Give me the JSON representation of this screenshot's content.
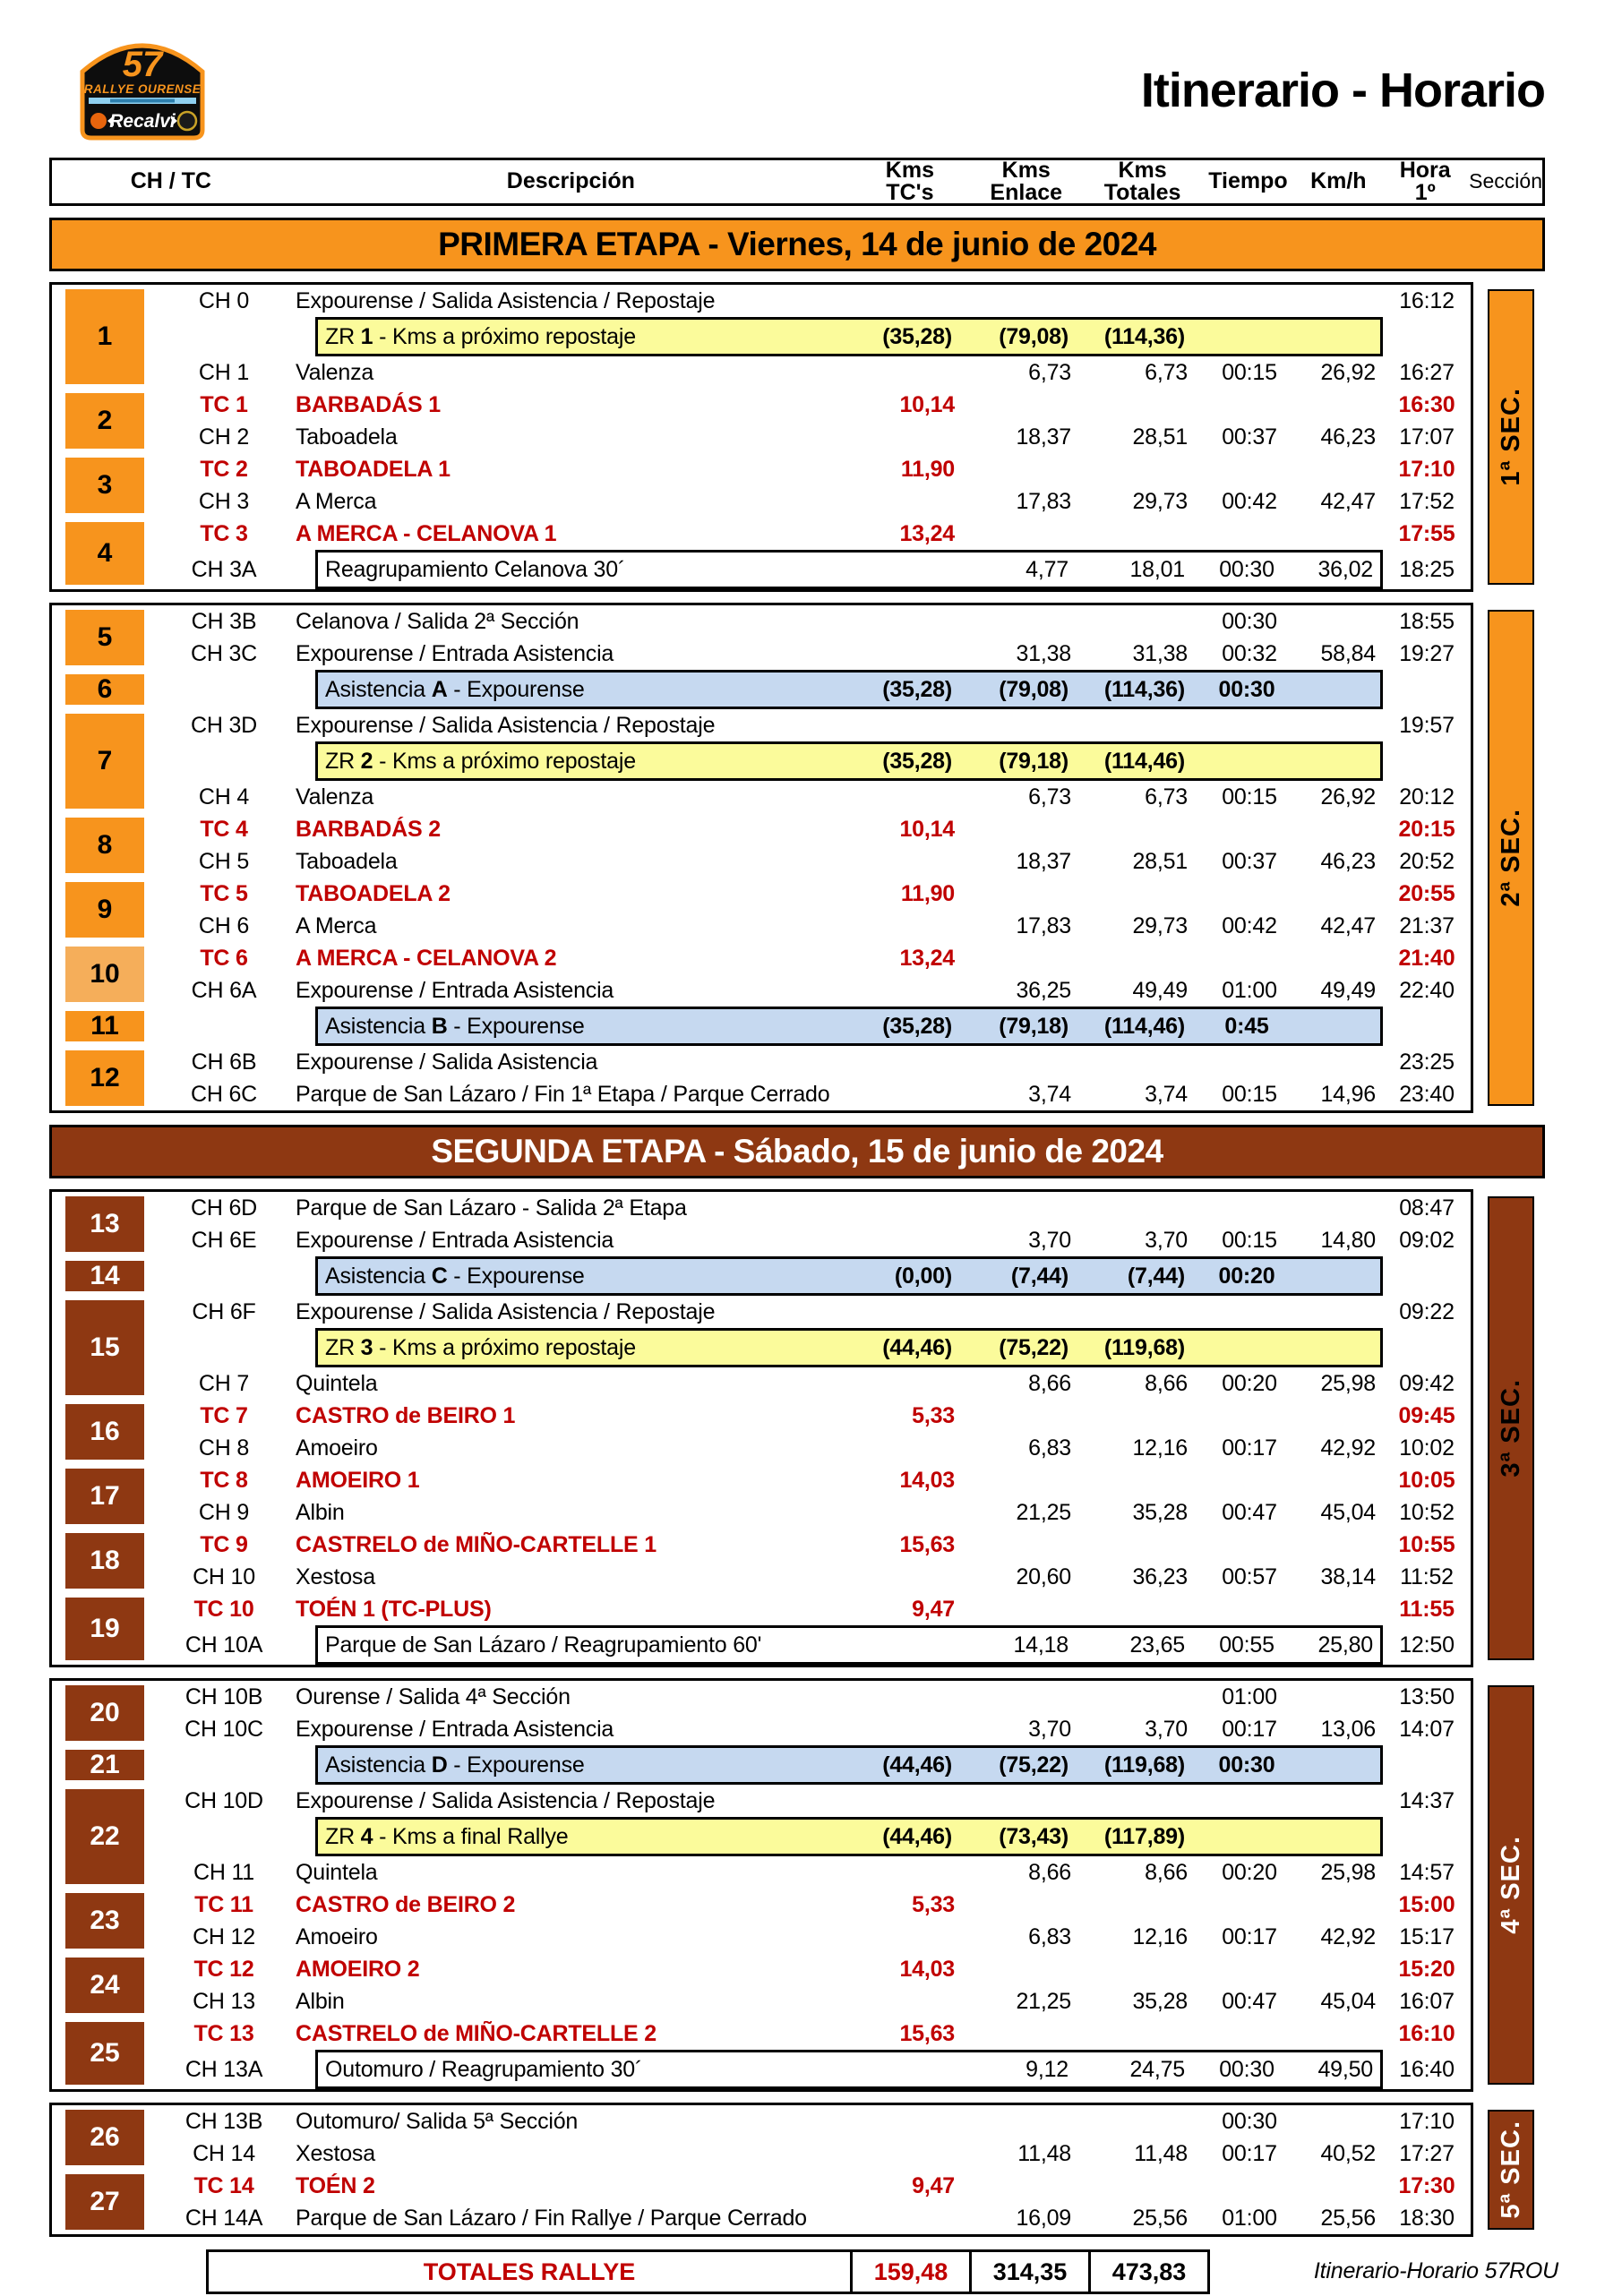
{
  "title": "Itinerario - Horario",
  "logo": {
    "number": "57",
    "name": "RALLYE OURENSE",
    "sponsor": "Recalvi"
  },
  "columns": {
    "chtc": "CH / TC",
    "desc": "Descripción",
    "kms_tc_1": "Kms",
    "kms_tc_2": "TC's",
    "enlace_1": "Kms",
    "enlace_2": "Enlace",
    "totales_1": "Kms",
    "totales_2": "Totales",
    "tiempo": "Tiempo",
    "kmh": "Km/h",
    "hora_1": "Hora",
    "hora_2": "1º",
    "seccion": "Sección"
  },
  "colors": {
    "orange": "#F7941D",
    "orange_light": "#F5AE5A",
    "brown": "#8E3812",
    "yellow": "#FBFB9B",
    "blue": "#C6D9F0",
    "red": "#C00000"
  },
  "stages": [
    {
      "label": "PRIMERA ETAPA - Viernes, 14 de junio de 2024",
      "theme": "orange",
      "blocks": [
        {
          "section": "1ª SEC.",
          "theme": "orange",
          "sec_text": "#000000",
          "groups": [
            {
              "n": "1",
              "rows": [
                {
                  "t": "ch",
                  "code": "CH 0",
                  "d": "Expourense / Salida Asistencia / Repostaje",
                  "h": "16:12"
                },
                {
                  "t": "zr",
                  "dp": "ZR ",
                  "db": "1",
                  "dr": " - Kms a próximo repostaje",
                  "ktc": "(35,28)",
                  "ken": "(79,08)",
                  "kto": "(114,36)"
                },
                {
                  "t": "ch",
                  "code": "CH 1",
                  "d": "Valenza",
                  "ken": "6,73",
                  "kto": "6,73",
                  "ti": "00:15",
                  "km": "26,92",
                  "h": "16:27"
                }
              ]
            },
            {
              "n": "2",
              "rows": [
                {
                  "t": "tc",
                  "code": "TC 1",
                  "d": "BARBADÁS 1",
                  "ktc": "10,14",
                  "h": "16:30"
                },
                {
                  "t": "ch",
                  "code": "CH 2",
                  "d": "Taboadela",
                  "ken": "18,37",
                  "kto": "28,51",
                  "ti": "00:37",
                  "km": "46,23",
                  "h": "17:07"
                }
              ]
            },
            {
              "n": "3",
              "rows": [
                {
                  "t": "tc",
                  "code": "TC 2",
                  "d": "TABOADELA 1",
                  "ktc": "11,90",
                  "h": "17:10"
                },
                {
                  "t": "ch",
                  "code": "CH 3",
                  "d": "A Merca",
                  "ken": "17,83",
                  "kto": "29,73",
                  "ti": "00:42",
                  "km": "42,47",
                  "h": "17:52"
                }
              ]
            },
            {
              "n": "4",
              "rows": [
                {
                  "t": "tc",
                  "code": "TC 3",
                  "d": "A MERCA - CELANOVA 1",
                  "ktc": "13,24",
                  "h": "17:55"
                },
                {
                  "t": "reag",
                  "code": "CH 3A",
                  "d": "Reagrupamiento Celanova 30´",
                  "ken": "4,77",
                  "kto": "18,01",
                  "ti": "00:30",
                  "km": "36,02",
                  "h": "18:25"
                }
              ]
            }
          ]
        },
        {
          "section": "2ª SEC.",
          "theme": "orange",
          "sec_text": "#000000",
          "groups": [
            {
              "n": "5",
              "rows": [
                {
                  "t": "ch",
                  "code": "CH 3B",
                  "d": "Celanova / Salida 2ª Sección",
                  "ti": "00:30",
                  "h": "18:55"
                },
                {
                  "t": "ch",
                  "code": "CH 3C",
                  "d": "Expourense / Entrada Asistencia",
                  "ken": "31,38",
                  "kto": "31,38",
                  "ti": "00:32",
                  "km": "58,84",
                  "h": "19:27"
                }
              ]
            },
            {
              "n": "6",
              "rows": [
                {
                  "t": "asist",
                  "dp": "Asistencia ",
                  "db": "A",
                  "dr": " - Expourense",
                  "ktc": "(35,28)",
                  "ken": "(79,08)",
                  "kto": "(114,36)",
                  "ti": "00:30"
                }
              ]
            },
            {
              "n": "7",
              "rows": [
                {
                  "t": "ch",
                  "code": "CH 3D",
                  "d": "Expourense / Salida Asistencia / Repostaje",
                  "h": "19:57"
                },
                {
                  "t": "zr",
                  "dp": "ZR ",
                  "db": "2",
                  "dr": " - Kms a próximo repostaje",
                  "ktc": "(35,28)",
                  "ken": "(79,18)",
                  "kto": "(114,46)"
                },
                {
                  "t": "ch",
                  "code": "CH 4",
                  "d": "Valenza",
                  "ken": "6,73",
                  "kto": "6,73",
                  "ti": "00:15",
                  "km": "26,92",
                  "h": "20:12"
                }
              ]
            },
            {
              "n": "8",
              "rows": [
                {
                  "t": "tc",
                  "code": "TC 4",
                  "d": "BARBADÁS 2",
                  "ktc": "10,14",
                  "h": "20:15"
                },
                {
                  "t": "ch",
                  "code": "CH 5",
                  "d": "Taboadela",
                  "ken": "18,37",
                  "kto": "28,51",
                  "ti": "00:37",
                  "km": "46,23",
                  "h": "20:52"
                }
              ]
            },
            {
              "n": "9",
              "rows": [
                {
                  "t": "tc",
                  "code": "TC 5",
                  "d": "TABOADELA 2",
                  "ktc": "11,90",
                  "h": "20:55"
                },
                {
                  "t": "ch",
                  "code": "CH 6",
                  "d": "A Merca",
                  "ken": "17,83",
                  "kto": "29,73",
                  "ti": "00:42",
                  "km": "42,47",
                  "h": "21:37"
                }
              ]
            },
            {
              "n": "10",
              "light": true,
              "rows": [
                {
                  "t": "tc",
                  "code": "TC 6",
                  "d": "A MERCA - CELANOVA 2",
                  "ktc": "13,24",
                  "h": "21:40"
                },
                {
                  "t": "ch",
                  "code": "CH 6A",
                  "d": "Expourense / Entrada Asistencia",
                  "ken": "36,25",
                  "kto": "49,49",
                  "ti": "01:00",
                  "km": "49,49",
                  "h": "22:40"
                }
              ]
            },
            {
              "n": "11",
              "rows": [
                {
                  "t": "asist",
                  "dp": "Asistencia ",
                  "db": "B",
                  "dr": " - Expourense",
                  "ktc": "(35,28)",
                  "ken": "(79,18)",
                  "kto": "(114,46)",
                  "ti": "0:45"
                }
              ]
            },
            {
              "n": "12",
              "rows": [
                {
                  "t": "ch",
                  "code": "CH 6B",
                  "d": "Expourense / Salida Asistencia",
                  "h": "23:25"
                },
                {
                  "t": "ch",
                  "code": "CH 6C",
                  "d": "Parque de San Lázaro / Fin 1ª Etapa / Parque Cerrado",
                  "ken": "3,74",
                  "kto": "3,74",
                  "ti": "00:15",
                  "km": "14,96",
                  "h": "23:40"
                }
              ]
            }
          ]
        }
      ]
    },
    {
      "label": "SEGUNDA ETAPA - Sábado, 15 de junio de 2024",
      "theme": "brown",
      "blocks": [
        {
          "section": "3ª SEC.",
          "theme": "brown",
          "sec_text": "#000000",
          "groups": [
            {
              "n": "13",
              "rows": [
                {
                  "t": "ch",
                  "code": "CH 6D",
                  "d": "Parque de San Lázaro - Salida 2ª Etapa",
                  "h": "08:47"
                },
                {
                  "t": "ch",
                  "code": "CH 6E",
                  "d": "Expourense / Entrada Asistencia",
                  "ken": "3,70",
                  "kto": "3,70",
                  "ti": "00:15",
                  "km": "14,80",
                  "h": "09:02"
                }
              ]
            },
            {
              "n": "14",
              "rows": [
                {
                  "t": "asist",
                  "dp": "Asistencia ",
                  "db": "C",
                  "dr": " - Expourense",
                  "ktc": "(0,00)",
                  "ken": "(7,44)",
                  "kto": "(7,44)",
                  "ti": "00:20"
                }
              ]
            },
            {
              "n": "15",
              "rows": [
                {
                  "t": "ch",
                  "code": "CH 6F",
                  "d": "Expourense / Salida Asistencia / Repostaje",
                  "h": "09:22"
                },
                {
                  "t": "zr",
                  "dp": "ZR ",
                  "db": "3",
                  "dr": " - Kms a próximo repostaje",
                  "ktc": "(44,46)",
                  "ken": "(75,22)",
                  "kto": "(119,68)"
                },
                {
                  "t": "ch",
                  "code": "CH 7",
                  "d": "Quintela",
                  "ken": "8,66",
                  "kto": "8,66",
                  "ti": "00:20",
                  "km": "25,98",
                  "h": "09:42"
                }
              ]
            },
            {
              "n": "16",
              "rows": [
                {
                  "t": "tc",
                  "code": "TC 7",
                  "d": "CASTRO de BEIRO 1",
                  "ktc": "5,33",
                  "h": "09:45"
                },
                {
                  "t": "ch",
                  "code": "CH 8",
                  "d": "Amoeiro",
                  "ken": "6,83",
                  "kto": "12,16",
                  "ti": "00:17",
                  "km": "42,92",
                  "h": "10:02"
                }
              ]
            },
            {
              "n": "17",
              "rows": [
                {
                  "t": "tc",
                  "code": "TC 8",
                  "d": "AMOEIRO 1",
                  "ktc": "14,03",
                  "h": "10:05"
                },
                {
                  "t": "ch",
                  "code": "CH 9",
                  "d": "Albin",
                  "ken": "21,25",
                  "kto": "35,28",
                  "ti": "00:47",
                  "km": "45,04",
                  "h": "10:52"
                }
              ]
            },
            {
              "n": "18",
              "rows": [
                {
                  "t": "tc",
                  "code": "TC 9",
                  "d": "CASTRELO de MIÑO-CARTELLE 1",
                  "ktc": "15,63",
                  "h": "10:55"
                },
                {
                  "t": "ch",
                  "code": "CH 10",
                  "d": "Xestosa",
                  "ken": "20,60",
                  "kto": "36,23",
                  "ti": "00:57",
                  "km": "38,14",
                  "h": "11:52"
                }
              ]
            },
            {
              "n": "19",
              "rows": [
                {
                  "t": "tc",
                  "code": "TC 10",
                  "d": "TOÉN 1 (TC-PLUS)",
                  "ktc": "9,47",
                  "h": "11:55"
                },
                {
                  "t": "reag",
                  "code": "CH 10A",
                  "d": "Parque de San Lázaro / Reagrupamiento 60'",
                  "ken": "14,18",
                  "kto": "23,65",
                  "ti": "00:55",
                  "km": "25,80",
                  "h": "12:50"
                }
              ]
            }
          ]
        },
        {
          "section": "4ª SEC.",
          "theme": "brown",
          "sec_text": "#ffffff",
          "groups": [
            {
              "n": "20",
              "rows": [
                {
                  "t": "ch",
                  "code": "CH 10B",
                  "d": "Ourense / Salida 4ª Sección",
                  "ti": "01:00",
                  "h": "13:50"
                },
                {
                  "t": "ch",
                  "code": "CH 10C",
                  "d": "Expourense / Entrada Asistencia",
                  "ken": "3,70",
                  "kto": "3,70",
                  "ti": "00:17",
                  "km": "13,06",
                  "h": "14:07"
                }
              ]
            },
            {
              "n": "21",
              "rows": [
                {
                  "t": "asist",
                  "dp": "Asistencia ",
                  "db": "D",
                  "dr": " - Expourense",
                  "ktc": "(44,46)",
                  "ken": "(75,22)",
                  "kto": "(119,68)",
                  "ti": "00:30"
                }
              ]
            },
            {
              "n": "22",
              "rows": [
                {
                  "t": "ch",
                  "code": "CH 10D",
                  "d": "Expourense / Salida Asistencia / Repostaje",
                  "h": "14:37"
                },
                {
                  "t": "zr",
                  "dp": "ZR ",
                  "db": "4",
                  "dr": " - Kms a final Rallye",
                  "ktc": "(44,46)",
                  "ken": "(73,43)",
                  "kto": "(117,89)"
                },
                {
                  "t": "ch",
                  "code": "CH 11",
                  "d": "Quintela",
                  "ken": "8,66",
                  "kto": "8,66",
                  "ti": "00:20",
                  "km": "25,98",
                  "h": "14:57"
                }
              ]
            },
            {
              "n": "23",
              "rows": [
                {
                  "t": "tc",
                  "code": "TC 11",
                  "d": "CASTRO de BEIRO 2",
                  "ktc": "5,33",
                  "h": "15:00"
                },
                {
                  "t": "ch",
                  "code": "CH 12",
                  "d": "Amoeiro",
                  "ken": "6,83",
                  "kto": "12,16",
                  "ti": "00:17",
                  "km": "42,92",
                  "h": "15:17"
                }
              ]
            },
            {
              "n": "24",
              "rows": [
                {
                  "t": "tc",
                  "code": "TC 12",
                  "d": "AMOEIRO 2",
                  "ktc": "14,03",
                  "h": "15:20"
                },
                {
                  "t": "ch",
                  "code": "CH 13",
                  "d": "Albin",
                  "ken": "21,25",
                  "kto": "35,28",
                  "ti": "00:47",
                  "km": "45,04",
                  "h": "16:07"
                }
              ]
            },
            {
              "n": "25",
              "rows": [
                {
                  "t": "tc",
                  "code": "TC 13",
                  "d": "CASTRELO de MIÑO-CARTELLE 2",
                  "ktc": "15,63",
                  "h": "16:10"
                },
                {
                  "t": "reag",
                  "code": "CH 13A",
                  "d": "Outomuro / Reagrupamiento 30´",
                  "ken": "9,12",
                  "kto": "24,75",
                  "ti": "00:30",
                  "km": "49,50",
                  "h": "16:40"
                }
              ]
            }
          ]
        },
        {
          "section": "5ª SEC.",
          "theme": "brown",
          "sec_text": "#ffffff",
          "groups": [
            {
              "n": "26",
              "rows": [
                {
                  "t": "ch",
                  "code": "CH 13B",
                  "d": "Outomuro/ Salida 5ª Sección",
                  "ti": "00:30",
                  "h": "17:10"
                },
                {
                  "t": "ch",
                  "code": "CH 14",
                  "d": "Xestosa",
                  "ken": "11,48",
                  "kto": "11,48",
                  "ti": "00:17",
                  "km": "40,52",
                  "h": "17:27"
                }
              ]
            },
            {
              "n": "27",
              "rows": [
                {
                  "t": "tc",
                  "code": "TC 14",
                  "d": "TOÉN 2",
                  "ktc": "9,47",
                  "h": "17:30"
                },
                {
                  "t": "ch",
                  "code": "CH 14A",
                  "d": "Parque de San Lázaro / Fin Rallye / Parque Cerrado",
                  "ken": "16,09",
                  "kto": "25,56",
                  "ti": "01:00",
                  "km": "25,56",
                  "h": "18:30"
                }
              ]
            }
          ]
        }
      ]
    }
  ],
  "totals": {
    "label": "TOTALES RALLYE",
    "kms_tc": "159,48",
    "kms_enlace": "314,35",
    "kms_totales": "473,83"
  },
  "footer": "Itinerario-Horario 57ROU"
}
